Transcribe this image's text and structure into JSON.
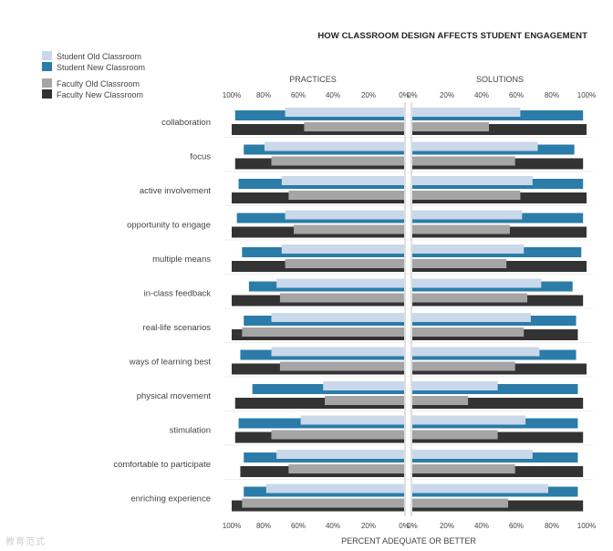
{
  "chart_data": {
    "type": "bar",
    "orientation": "horizontal",
    "title": "HOW CLASSROOM DESIGN AFFECTS STUDENT ENGAGEMENT",
    "panels": [
      "PRACTICES",
      "SOLUTIONS"
    ],
    "xlabel": "PERCENT ADEQUATE OR BETTER",
    "xlim": [
      0,
      100
    ],
    "ticks_left": [
      "100%",
      "80%",
      "60%",
      "40%",
      "20%",
      "0%"
    ],
    "ticks_right": [
      "0%",
      "20%",
      "40%",
      "60%",
      "80%",
      "100%"
    ],
    "categories": [
      "collaboration",
      "focus",
      "active involvement",
      "opportunity to engage",
      "multiple means",
      "in-class feedback",
      "real-life scenarios",
      "ways of learning best",
      "physical movement",
      "stimulation",
      "comfortable to participate",
      "enriching experience"
    ],
    "series": [
      {
        "name": "Student Old Classroom",
        "color": "#c9d8ea",
        "practices": [
          69,
          81,
          71,
          69,
          71,
          74,
          77,
          77,
          47,
          60,
          74,
          80
        ],
        "solutions": [
          62,
          72,
          69,
          63,
          64,
          74,
          68,
          73,
          49,
          65,
          69,
          78
        ]
      },
      {
        "name": "Student New Classroom",
        "color": "#2b7ca8",
        "practices": [
          98,
          93,
          96,
          97,
          94,
          90,
          93,
          95,
          88,
          96,
          93,
          93
        ],
        "solutions": [
          98,
          93,
          98,
          98,
          97,
          92,
          94,
          94,
          95,
          95,
          95,
          95
        ]
      },
      {
        "name": "Faculty Old Classroom",
        "color": "#a5a5a5",
        "practices": [
          58,
          77,
          67,
          64,
          69,
          72,
          94,
          72,
          46,
          77,
          67,
          94
        ],
        "solutions": [
          44,
          59,
          62,
          56,
          54,
          66,
          64,
          59,
          32,
          49,
          59,
          55
        ]
      },
      {
        "name": "Faculty New Classroom",
        "color": "#333333",
        "practices": [
          100,
          98,
          100,
          100,
          100,
          100,
          100,
          100,
          98,
          98,
          95,
          100
        ],
        "solutions": [
          100,
          98,
          100,
          100,
          100,
          98,
          95,
          100,
          98,
          98,
          98,
          98
        ]
      }
    ]
  },
  "watermark": "教育范式"
}
